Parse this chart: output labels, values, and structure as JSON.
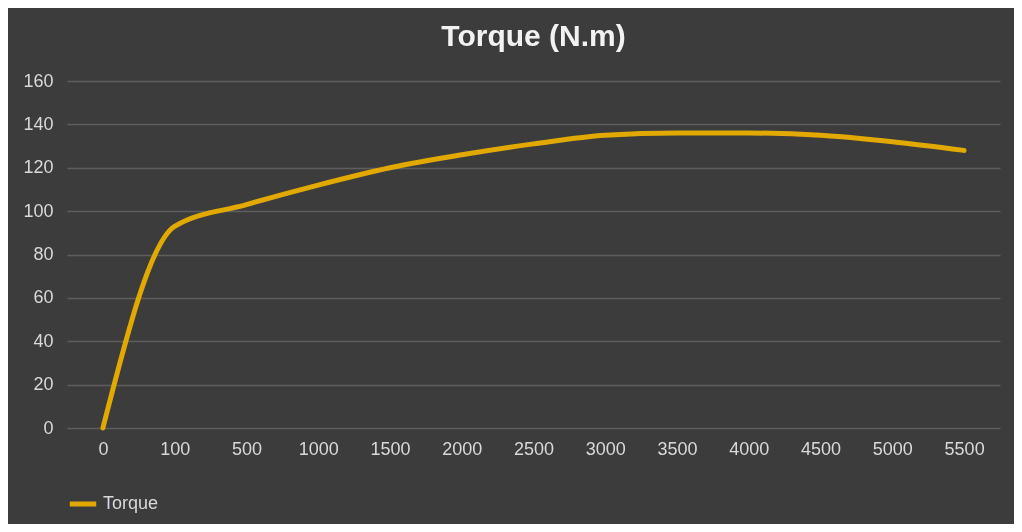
{
  "chart_data": {
    "type": "line",
    "title": "Torque (N.m)",
    "categories": [
      "0",
      "100",
      "500",
      "1000",
      "1500",
      "2000",
      "2500",
      "3000",
      "3500",
      "4000",
      "4500",
      "5000",
      "5500"
    ],
    "series": [
      {
        "name": "Torque",
        "color": "#e2aa00",
        "values": [
          0,
          93,
          103,
          112,
          120,
          126,
          131,
          135,
          136,
          136,
          135,
          132,
          128
        ]
      }
    ],
    "ylim": [
      0,
      160
    ],
    "yticks": [
      0,
      20,
      40,
      60,
      80,
      100,
      120,
      140,
      160
    ],
    "grid": "y",
    "legend": "bottom"
  }
}
